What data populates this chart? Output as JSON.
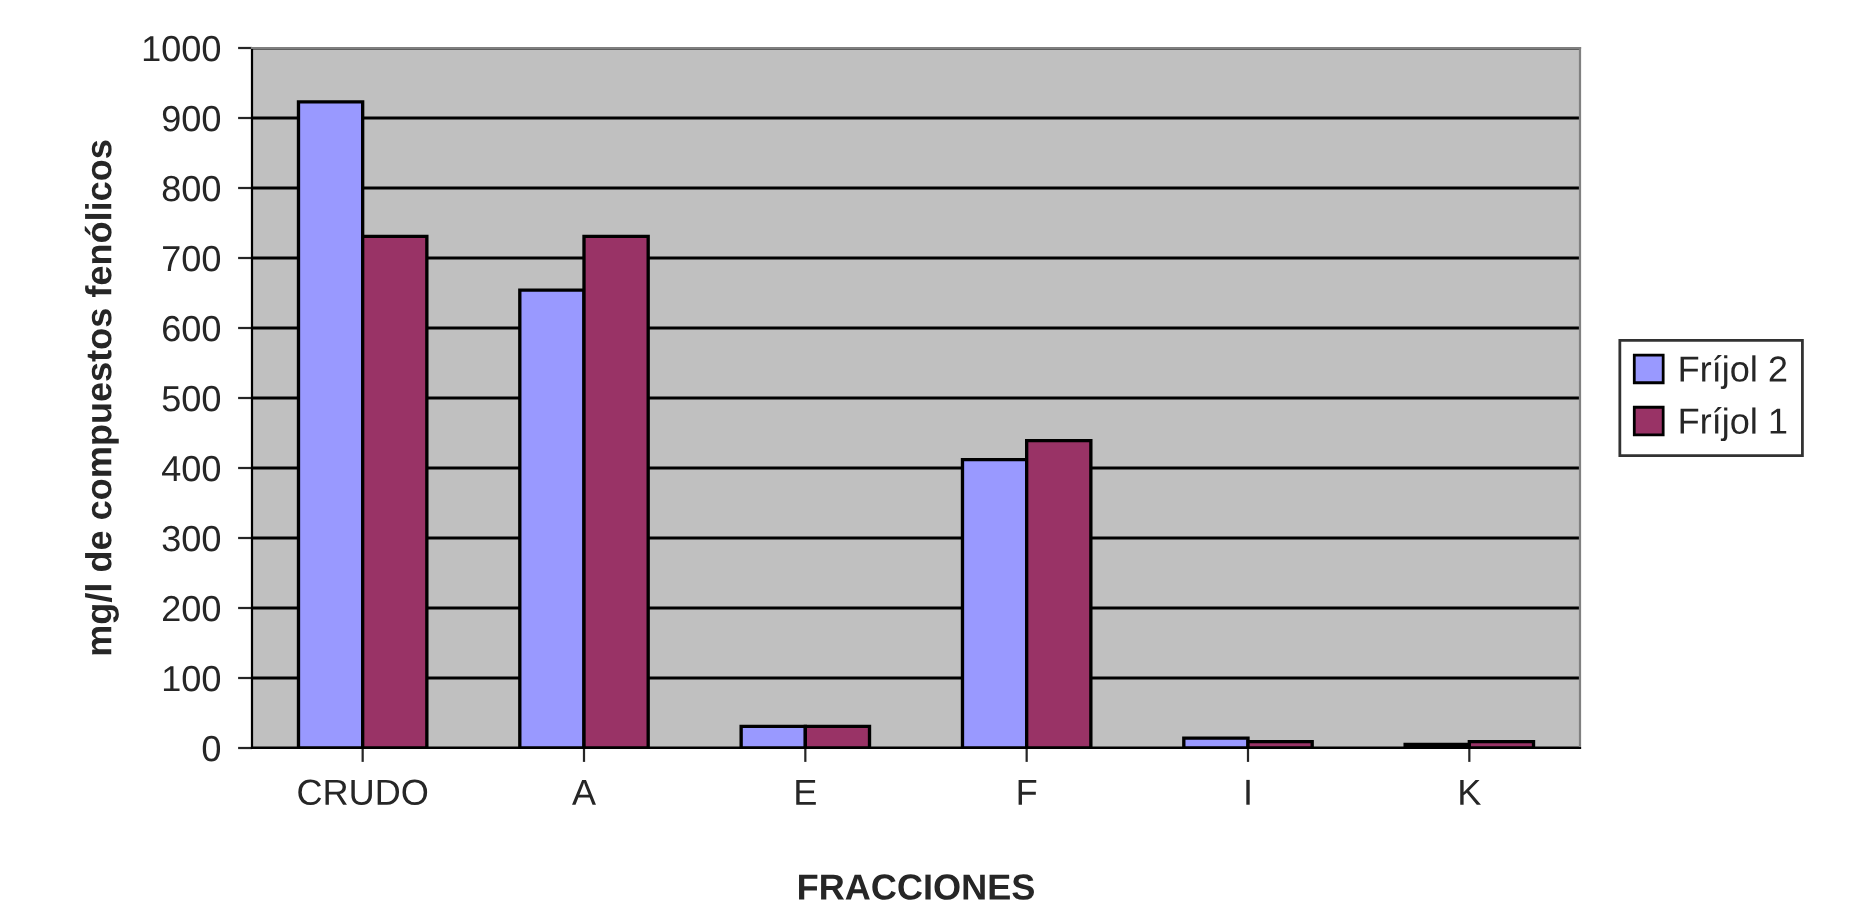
{
  "chart_data": {
    "type": "bar",
    "xlabel": "FRACCIONES",
    "ylabel": "mg/l de compuestos fenólicos",
    "categories": [
      "CRUDO",
      "A",
      "E",
      "F",
      "I",
      "K"
    ],
    "series": [
      {
        "name": "Fríjol 2",
        "color": "#9999ff",
        "values": [
          923,
          654,
          31,
          412,
          14,
          5
        ]
      },
      {
        "name": "Fríjol 1",
        "color": "#993366",
        "values": [
          731,
          731,
          31,
          439,
          9,
          9
        ]
      }
    ],
    "ylim": [
      0,
      1000
    ],
    "yticks": [
      0,
      100,
      200,
      300,
      400,
      500,
      600,
      700,
      800,
      900,
      1000
    ],
    "grid": "y",
    "legend": "right"
  }
}
